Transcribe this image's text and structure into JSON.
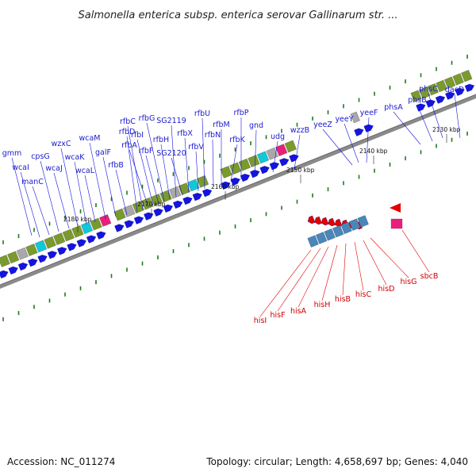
{
  "title": "Salmonella enterica subsp. enterica serovar Gallinarum str. ...",
  "footer": {
    "accession": "Accession: NC_011274",
    "summary": "Topology: circular; Length: 4,658,697 bp; Genes: 4,040"
  },
  "colors": {
    "forward": "#1414e0",
    "reverse": "#e00000",
    "pink": "#e8207a",
    "olive": "#7a9a2c",
    "cyan": "#10c8d8",
    "steel": "#4a86b8",
    "grey": "#a8a8a8",
    "tick": "#1e7a1e",
    "track": "#8a8a8a"
  },
  "kbp_labels": [
    "2180 kbp",
    "2170 kbp",
    "2160 kbp",
    "2150 kbp",
    "2140 kbp",
    "2130 kbp"
  ],
  "forward_genes": [
    "gmm",
    "wcaI",
    "manC",
    "cpsG",
    "wcaJ",
    "wzxC",
    "wcaK",
    "wcaL",
    "wcaM",
    "galF",
    "rfbB",
    "rfbD",
    "rfbC",
    "rfbA",
    "rfbI",
    "rfbF",
    "rfbG",
    "rfbH",
    "SG2119",
    "SG2120",
    "rfbX",
    "rfbV",
    "rfbU",
    "rfbN",
    "rfbM",
    "rfbK",
    "rfbP",
    "gnd",
    "udg",
    "wzzB",
    "yeeZ",
    "yeeY",
    "yeeF",
    "phsA",
    "phsB",
    "phsC",
    "dacD"
  ],
  "reverse_genes": [
    "hisI",
    "hisF",
    "hisA",
    "hisH",
    "hisB",
    "hisC",
    "hisD",
    "hisG",
    "sbcB"
  ]
}
